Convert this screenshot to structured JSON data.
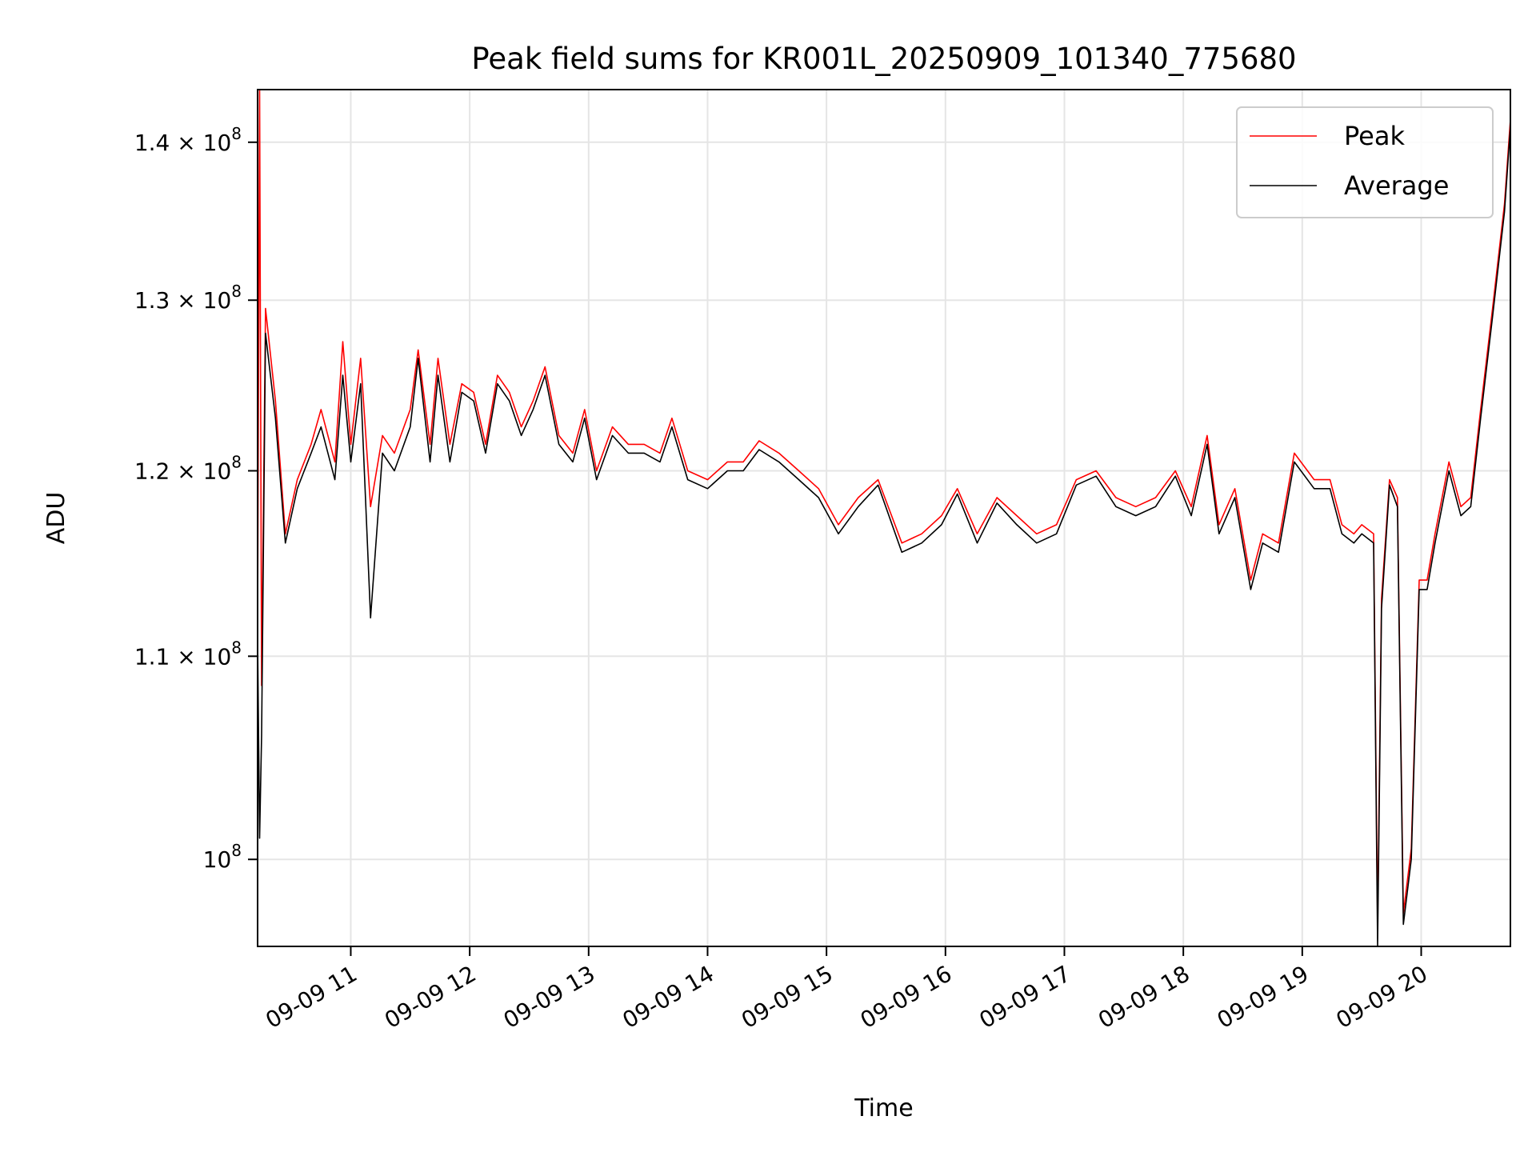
{
  "chart_data": {
    "type": "line",
    "title": "Peak field sums for KR001L_20250909_101340_775680",
    "xlabel": "Time",
    "ylabel": "ADU",
    "yscale": "log",
    "xlim": [
      "2025-09-09 10:13",
      "2025-09-09 20:45"
    ],
    "ylim": [
      96000000,
      143500000
    ],
    "grid": true,
    "legend_position": "top-right",
    "x_ticks": [
      {
        "value": "2025-09-09 11:00",
        "label": "09-09 11"
      },
      {
        "value": "2025-09-09 12:00",
        "label": "09-09 12"
      },
      {
        "value": "2025-09-09 13:00",
        "label": "09-09 13"
      },
      {
        "value": "2025-09-09 14:00",
        "label": "09-09 14"
      },
      {
        "value": "2025-09-09 15:00",
        "label": "09-09 15"
      },
      {
        "value": "2025-09-09 16:00",
        "label": "09-09 16"
      },
      {
        "value": "2025-09-09 17:00",
        "label": "09-09 17"
      },
      {
        "value": "2025-09-09 18:00",
        "label": "09-09 18"
      },
      {
        "value": "2025-09-09 19:00",
        "label": "09-09 19"
      },
      {
        "value": "2025-09-09 20:00",
        "label": "09-09 20"
      }
    ],
    "y_ticks": [
      {
        "value": 100000000,
        "mantissa": "",
        "base": "10",
        "exp": "8"
      },
      {
        "value": 110000000,
        "mantissa": "1.1 × ",
        "base": "10",
        "exp": "8"
      },
      {
        "value": 120000000,
        "mantissa": "1.2 × ",
        "base": "10",
        "exp": "8"
      },
      {
        "value": 130000000,
        "mantissa": "1.3 × ",
        "base": "10",
        "exp": "8"
      },
      {
        "value": 140000000,
        "mantissa": "1.4 × ",
        "base": "10",
        "exp": "8"
      }
    ],
    "series": [
      {
        "name": "Peak",
        "color": "#ff0000",
        "points": [
          [
            "2025-09-09 10:13",
            111500000
          ],
          [
            "2025-09-09 10:14",
            143500000
          ],
          [
            "2025-09-09 10:15",
            108500000
          ],
          [
            "2025-09-09 10:17",
            129500000
          ],
          [
            "2025-09-09 10:22",
            124000000
          ],
          [
            "2025-09-09 10:27",
            116500000
          ],
          [
            "2025-09-09 10:33",
            119500000
          ],
          [
            "2025-09-09 10:40",
            121500000
          ],
          [
            "2025-09-09 10:45",
            123500000
          ],
          [
            "2025-09-09 10:52",
            120500000
          ],
          [
            "2025-09-09 10:56",
            127500000
          ],
          [
            "2025-09-09 11:00",
            121500000
          ],
          [
            "2025-09-09 11:05",
            126500000
          ],
          [
            "2025-09-09 11:10",
            118000000
          ],
          [
            "2025-09-09 11:16",
            122000000
          ],
          [
            "2025-09-09 11:22",
            121000000
          ],
          [
            "2025-09-09 11:30",
            123500000
          ],
          [
            "2025-09-09 11:34",
            127000000
          ],
          [
            "2025-09-09 11:40",
            121500000
          ],
          [
            "2025-09-09 11:44",
            126500000
          ],
          [
            "2025-09-09 11:50",
            121500000
          ],
          [
            "2025-09-09 11:56",
            125000000
          ],
          [
            "2025-09-09 12:02",
            124500000
          ],
          [
            "2025-09-09 12:08",
            121500000
          ],
          [
            "2025-09-09 12:14",
            125500000
          ],
          [
            "2025-09-09 12:20",
            124500000
          ],
          [
            "2025-09-09 12:26",
            122500000
          ],
          [
            "2025-09-09 12:32",
            124000000
          ],
          [
            "2025-09-09 12:38",
            126000000
          ],
          [
            "2025-09-09 12:45",
            122000000
          ],
          [
            "2025-09-09 12:52",
            121000000
          ],
          [
            "2025-09-09 12:58",
            123500000
          ],
          [
            "2025-09-09 13:04",
            120000000
          ],
          [
            "2025-09-09 13:12",
            122500000
          ],
          [
            "2025-09-09 13:20",
            121500000
          ],
          [
            "2025-09-09 13:28",
            121500000
          ],
          [
            "2025-09-09 13:36",
            121000000
          ],
          [
            "2025-09-09 13:42",
            123000000
          ],
          [
            "2025-09-09 13:50",
            120000000
          ],
          [
            "2025-09-09 14:00",
            119500000
          ],
          [
            "2025-09-09 14:10",
            120500000
          ],
          [
            "2025-09-09 14:18",
            120500000
          ],
          [
            "2025-09-09 14:26",
            121700000
          ],
          [
            "2025-09-09 14:36",
            121000000
          ],
          [
            "2025-09-09 14:46",
            120000000
          ],
          [
            "2025-09-09 14:56",
            119000000
          ],
          [
            "2025-09-09 15:06",
            117000000
          ],
          [
            "2025-09-09 15:16",
            118500000
          ],
          [
            "2025-09-09 15:26",
            119500000
          ],
          [
            "2025-09-09 15:38",
            116000000
          ],
          [
            "2025-09-09 15:48",
            116500000
          ],
          [
            "2025-09-09 15:58",
            117500000
          ],
          [
            "2025-09-09 16:06",
            119000000
          ],
          [
            "2025-09-09 16:16",
            116500000
          ],
          [
            "2025-09-09 16:26",
            118500000
          ],
          [
            "2025-09-09 16:36",
            117500000
          ],
          [
            "2025-09-09 16:46",
            116500000
          ],
          [
            "2025-09-09 16:56",
            117000000
          ],
          [
            "2025-09-09 17:06",
            119500000
          ],
          [
            "2025-09-09 17:16",
            120000000
          ],
          [
            "2025-09-09 17:26",
            118500000
          ],
          [
            "2025-09-09 17:36",
            118000000
          ],
          [
            "2025-09-09 17:46",
            118500000
          ],
          [
            "2025-09-09 17:56",
            120000000
          ],
          [
            "2025-09-09 18:04",
            118000000
          ],
          [
            "2025-09-09 18:12",
            122000000
          ],
          [
            "2025-09-09 18:18",
            117000000
          ],
          [
            "2025-09-09 18:26",
            119000000
          ],
          [
            "2025-09-09 18:34",
            114000000
          ],
          [
            "2025-09-09 18:40",
            116500000
          ],
          [
            "2025-09-09 18:48",
            116000000
          ],
          [
            "2025-09-09 18:56",
            121000000
          ],
          [
            "2025-09-09 19:06",
            119500000
          ],
          [
            "2025-09-09 19:14",
            119500000
          ],
          [
            "2025-09-09 19:20",
            117000000
          ],
          [
            "2025-09-09 19:26",
            116500000
          ],
          [
            "2025-09-09 19:30",
            117000000
          ],
          [
            "2025-09-09 19:36",
            116500000
          ],
          [
            "2025-09-09 19:38",
            97000000
          ],
          [
            "2025-09-09 19:40",
            113000000
          ],
          [
            "2025-09-09 19:44",
            119500000
          ],
          [
            "2025-09-09 19:48",
            118500000
          ],
          [
            "2025-09-09 19:51",
            97500000
          ],
          [
            "2025-09-09 19:55",
            100500000
          ],
          [
            "2025-09-09 19:59",
            114000000
          ],
          [
            "2025-09-09 20:03",
            114000000
          ],
          [
            "2025-09-09 20:07",
            116500000
          ],
          [
            "2025-09-09 20:14",
            120500000
          ],
          [
            "2025-09-09 20:20",
            118000000
          ],
          [
            "2025-09-09 20:25",
            118500000
          ],
          [
            "2025-09-09 20:30",
            123500000
          ],
          [
            "2025-09-09 20:36",
            129500000
          ],
          [
            "2025-09-09 20:42",
            136000000
          ],
          [
            "2025-09-09 20:45",
            141500000
          ]
        ]
      },
      {
        "name": "Average",
        "color": "#000000",
        "points": [
          [
            "2025-09-09 10:13",
            111000000
          ],
          [
            "2025-09-09 10:14",
            101000000
          ],
          [
            "2025-09-09 10:15",
            106000000
          ],
          [
            "2025-09-09 10:17",
            128000000
          ],
          [
            "2025-09-09 10:22",
            123000000
          ],
          [
            "2025-09-09 10:27",
            116000000
          ],
          [
            "2025-09-09 10:33",
            119000000
          ],
          [
            "2025-09-09 10:40",
            121000000
          ],
          [
            "2025-09-09 10:45",
            122500000
          ],
          [
            "2025-09-09 10:52",
            119500000
          ],
          [
            "2025-09-09 10:56",
            125500000
          ],
          [
            "2025-09-09 11:00",
            120500000
          ],
          [
            "2025-09-09 11:05",
            125000000
          ],
          [
            "2025-09-09 11:10",
            112000000
          ],
          [
            "2025-09-09 11:16",
            121000000
          ],
          [
            "2025-09-09 11:22",
            120000000
          ],
          [
            "2025-09-09 11:30",
            122500000
          ],
          [
            "2025-09-09 11:34",
            126500000
          ],
          [
            "2025-09-09 11:40",
            120500000
          ],
          [
            "2025-09-09 11:44",
            125500000
          ],
          [
            "2025-09-09 11:50",
            120500000
          ],
          [
            "2025-09-09 11:56",
            124500000
          ],
          [
            "2025-09-09 12:02",
            124000000
          ],
          [
            "2025-09-09 12:08",
            121000000
          ],
          [
            "2025-09-09 12:14",
            125000000
          ],
          [
            "2025-09-09 12:20",
            124000000
          ],
          [
            "2025-09-09 12:26",
            122000000
          ],
          [
            "2025-09-09 12:32",
            123500000
          ],
          [
            "2025-09-09 12:38",
            125500000
          ],
          [
            "2025-09-09 12:45",
            121500000
          ],
          [
            "2025-09-09 12:52",
            120500000
          ],
          [
            "2025-09-09 12:58",
            123000000
          ],
          [
            "2025-09-09 13:04",
            119500000
          ],
          [
            "2025-09-09 13:12",
            122000000
          ],
          [
            "2025-09-09 13:20",
            121000000
          ],
          [
            "2025-09-09 13:28",
            121000000
          ],
          [
            "2025-09-09 13:36",
            120500000
          ],
          [
            "2025-09-09 13:42",
            122500000
          ],
          [
            "2025-09-09 13:50",
            119500000
          ],
          [
            "2025-09-09 14:00",
            119000000
          ],
          [
            "2025-09-09 14:10",
            120000000
          ],
          [
            "2025-09-09 14:18",
            120000000
          ],
          [
            "2025-09-09 14:26",
            121200000
          ],
          [
            "2025-09-09 14:36",
            120500000
          ],
          [
            "2025-09-09 14:46",
            119500000
          ],
          [
            "2025-09-09 14:56",
            118500000
          ],
          [
            "2025-09-09 15:06",
            116500000
          ],
          [
            "2025-09-09 15:16",
            118000000
          ],
          [
            "2025-09-09 15:26",
            119200000
          ],
          [
            "2025-09-09 15:38",
            115500000
          ],
          [
            "2025-09-09 15:48",
            116000000
          ],
          [
            "2025-09-09 15:58",
            117000000
          ],
          [
            "2025-09-09 16:06",
            118700000
          ],
          [
            "2025-09-09 16:16",
            116000000
          ],
          [
            "2025-09-09 16:26",
            118200000
          ],
          [
            "2025-09-09 16:36",
            117000000
          ],
          [
            "2025-09-09 16:46",
            116000000
          ],
          [
            "2025-09-09 16:56",
            116500000
          ],
          [
            "2025-09-09 17:06",
            119200000
          ],
          [
            "2025-09-09 17:16",
            119700000
          ],
          [
            "2025-09-09 17:26",
            118000000
          ],
          [
            "2025-09-09 17:36",
            117500000
          ],
          [
            "2025-09-09 17:46",
            118000000
          ],
          [
            "2025-09-09 17:56",
            119700000
          ],
          [
            "2025-09-09 18:04",
            117500000
          ],
          [
            "2025-09-09 18:12",
            121500000
          ],
          [
            "2025-09-09 18:18",
            116500000
          ],
          [
            "2025-09-09 18:26",
            118500000
          ],
          [
            "2025-09-09 18:34",
            113500000
          ],
          [
            "2025-09-09 18:40",
            116000000
          ],
          [
            "2025-09-09 18:48",
            115500000
          ],
          [
            "2025-09-09 18:56",
            120500000
          ],
          [
            "2025-09-09 19:06",
            119000000
          ],
          [
            "2025-09-09 19:14",
            119000000
          ],
          [
            "2025-09-09 19:20",
            116500000
          ],
          [
            "2025-09-09 19:26",
            116000000
          ],
          [
            "2025-09-09 19:30",
            116500000
          ],
          [
            "2025-09-09 19:36",
            116000000
          ],
          [
            "2025-09-09 19:38",
            96000000
          ],
          [
            "2025-09-09 19:40",
            112500000
          ],
          [
            "2025-09-09 19:44",
            119200000
          ],
          [
            "2025-09-09 19:48",
            118000000
          ],
          [
            "2025-09-09 19:51",
            97000000
          ],
          [
            "2025-09-09 19:55",
            100000000
          ],
          [
            "2025-09-09 19:59",
            113500000
          ],
          [
            "2025-09-09 20:03",
            113500000
          ],
          [
            "2025-09-09 20:07",
            116000000
          ],
          [
            "2025-09-09 20:14",
            120000000
          ],
          [
            "2025-09-09 20:20",
            117500000
          ],
          [
            "2025-09-09 20:25",
            118000000
          ],
          [
            "2025-09-09 20:30",
            123000000
          ],
          [
            "2025-09-09 20:36",
            129000000
          ],
          [
            "2025-09-09 20:42",
            135500000
          ],
          [
            "2025-09-09 20:45",
            141000000
          ]
        ]
      }
    ]
  }
}
